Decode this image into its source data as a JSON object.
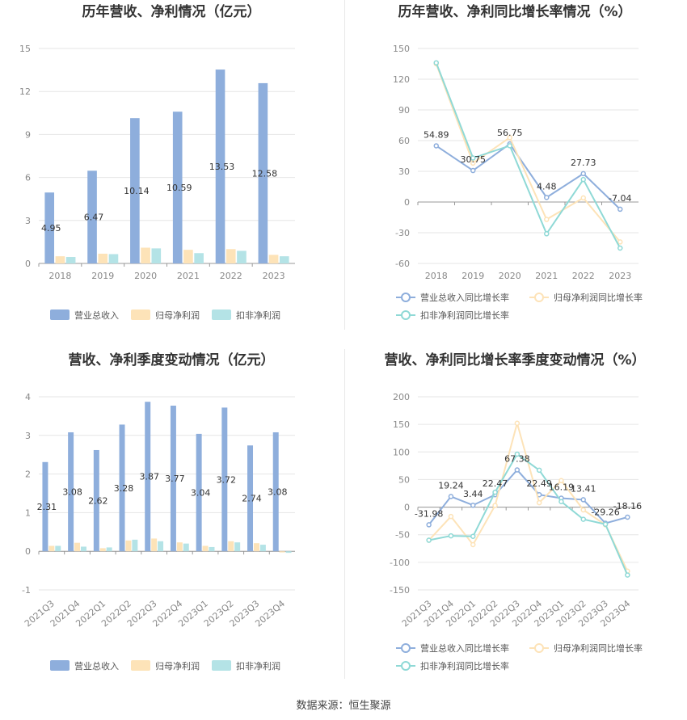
{
  "source": "数据来源：恒生聚源",
  "colors": {
    "revenue": "#8eaedc",
    "parent": "#fde3b8",
    "deducted": "#b4e3e6",
    "grid": "#e6e6e6",
    "axis": "#999999",
    "line_revenue": "#8eaedc",
    "line_parent": "#fde3b8",
    "line_deducted": "#8fd9d6"
  },
  "chart_data": [
    {
      "type": "bar",
      "title": "历年营收、净利情况（亿元）",
      "categories": [
        "2018",
        "2019",
        "2020",
        "2021",
        "2022",
        "2023"
      ],
      "ylim": [
        0,
        15
      ],
      "yticks": [
        "0",
        "3",
        "6",
        "9",
        "12",
        "15"
      ],
      "series": [
        {
          "name": "营业总收入",
          "values": [
            4.95,
            6.47,
            10.14,
            10.59,
            13.53,
            12.58
          ],
          "labels": [
            "4.95",
            "6.47",
            "10.14",
            "10.59",
            "13.53",
            "12.58"
          ]
        },
        {
          "name": "归母净利润",
          "values": [
            0.5,
            0.68,
            1.1,
            0.95,
            1.0,
            0.6
          ]
        },
        {
          "name": "扣非净利润",
          "values": [
            0.45,
            0.65,
            1.05,
            0.72,
            0.88,
            0.5
          ]
        }
      ],
      "legend": "bottom"
    },
    {
      "type": "line",
      "title": "历年营收、净利同比增长率情况（%）",
      "categories": [
        "2018",
        "2019",
        "2020",
        "2021",
        "2022",
        "2023"
      ],
      "ylim": [
        -60,
        150
      ],
      "yticks": [
        "-60",
        "-30",
        "0",
        "30",
        "60",
        "90",
        "120",
        "150"
      ],
      "series": [
        {
          "name": "营业总收入同比增长率",
          "values": [
            54.89,
            30.75,
            56.75,
            4.48,
            27.73,
            -7.04
          ],
          "labels": [
            "54.89",
            "30.75",
            "56.75",
            "4.48",
            "27.73",
            "-7.04"
          ]
        },
        {
          "name": "归母净利润同比增长率",
          "values": [
            135,
            38,
            63,
            -17,
            4,
            -39
          ]
        },
        {
          "name": "扣非净利润同比增长率",
          "values": [
            136,
            43,
            55,
            -31,
            22,
            -45
          ]
        }
      ],
      "legend": "bottom"
    },
    {
      "type": "bar",
      "title": "营收、净利季度变动情况（亿元）",
      "categories": [
        "2021Q3",
        "2021Q4",
        "2022Q1",
        "2022Q2",
        "2022Q3",
        "2022Q4",
        "2023Q1",
        "2023Q2",
        "2023Q3",
        "2023Q4"
      ],
      "ylim": [
        -1,
        4
      ],
      "yticks": [
        "-1",
        "0",
        "1",
        "2",
        "3",
        "4"
      ],
      "series": [
        {
          "name": "营业总收入",
          "values": [
            2.31,
            3.08,
            2.62,
            3.28,
            3.87,
            3.77,
            3.04,
            3.72,
            2.74,
            3.08
          ],
          "labels": [
            "2.31",
            "3.08",
            "2.62",
            "3.28",
            "3.87",
            "3.77",
            "3.04",
            "3.72",
            "2.74",
            "3.08"
          ]
        },
        {
          "name": "归母净利润",
          "values": [
            0.14,
            0.22,
            0.08,
            0.28,
            0.33,
            0.23,
            0.14,
            0.26,
            0.21,
            -0.03
          ]
        },
        {
          "name": "扣非净利润",
          "values": [
            0.14,
            0.12,
            0.1,
            0.3,
            0.26,
            0.2,
            0.11,
            0.23,
            0.17,
            -0.04
          ]
        }
      ],
      "legend": "bottom"
    },
    {
      "type": "line",
      "title": "营收、净利同比增长率季度变动情况（%）",
      "categories": [
        "2021Q3",
        "2021Q4",
        "2022Q1",
        "2022Q2",
        "2022Q3",
        "2022Q4",
        "2023Q1",
        "2023Q2",
        "2023Q3",
        "2023Q4"
      ],
      "ylim": [
        -150,
        200
      ],
      "yticks": [
        "-150",
        "-100",
        "-50",
        "0",
        "50",
        "100",
        "150",
        "200"
      ],
      "series": [
        {
          "name": "营业总收入同比增长率",
          "values": [
            -31.98,
            19.24,
            3.44,
            22.47,
            67.38,
            22.49,
            16.19,
            13.41,
            -29.26,
            -18.16
          ],
          "labels": [
            "-31.98",
            "19.24",
            "3.44",
            "22.47",
            "67.38",
            "22.49",
            "16.19",
            "13.41",
            "-29.26",
            "-18.16"
          ]
        },
        {
          "name": "归母净利润同比增长率",
          "values": [
            -60,
            -17,
            -68,
            3,
            152,
            8,
            48,
            -5,
            -32,
            -116
          ]
        },
        {
          "name": "扣非净利润同比增长率",
          "values": [
            -60,
            -52,
            -53,
            27,
            96,
            67,
            10,
            -22,
            -31,
            -123
          ]
        }
      ],
      "legend": "bottom"
    }
  ]
}
